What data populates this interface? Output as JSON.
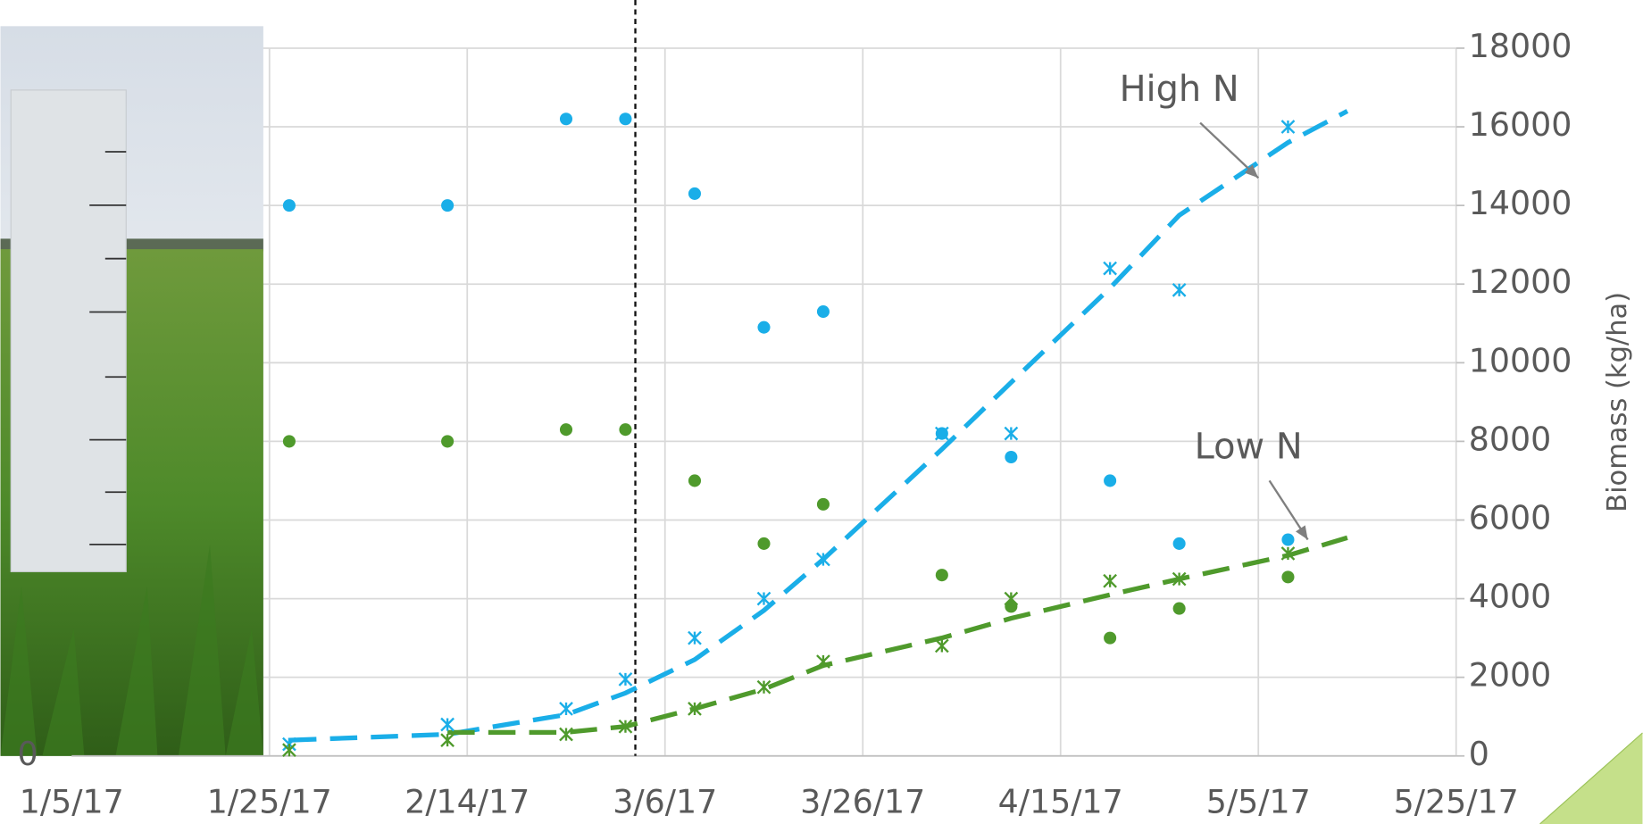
{
  "chart_data": {
    "type": "scatter",
    "y_label": "Biomass (kg/ha)",
    "xlim": [
      "2017-01-05",
      "2017-05-25"
    ],
    "xticks": [
      {
        "value": "2017-01-05",
        "label": "1/5/17"
      },
      {
        "value": "2017-01-25",
        "label": "1/25/17"
      },
      {
        "value": "2017-02-14",
        "label": "2/14/17"
      },
      {
        "value": "2017-03-06",
        "label": "3/6/17"
      },
      {
        "value": "2017-03-26",
        "label": "3/26/17"
      },
      {
        "value": "2017-04-15",
        "label": "4/15/17"
      },
      {
        "value": "2017-05-05",
        "label": "5/5/17"
      },
      {
        "value": "2017-05-25",
        "label": "5/25/17"
      }
    ],
    "ylim": [
      0,
      18000
    ],
    "yticks": [
      0,
      2000,
      4000,
      6000,
      8000,
      10000,
      12000,
      14000,
      16000,
      18000
    ],
    "y2lim": [
      0,
      18000
    ],
    "y2ticks": [
      0
    ],
    "grid": true,
    "vline_x": "2017-03-03",
    "annotations": [
      {
        "text": "High N",
        "x": "2017-04-27",
        "y": 16900,
        "arrow_x": "2017-05-05",
        "arrow_y": 14700
      },
      {
        "text": "Low N",
        "x": "2017-05-04",
        "y": 7800,
        "arrow_x": "2017-05-10",
        "arrow_y": 5500
      }
    ],
    "series": [
      {
        "name": "High N",
        "marker": "circle",
        "color": "#1aaee8",
        "x": [
          "2017-01-27",
          "2017-02-12",
          "2017-02-24",
          "2017-03-02",
          "2017-03-09",
          "2017-03-16",
          "2017-03-22",
          "2017-04-03",
          "2017-04-10",
          "2017-04-20",
          "2017-04-27",
          "2017-05-08"
        ],
        "values": [
          14000,
          14000,
          16200,
          16200,
          14300,
          10900,
          11300,
          8200,
          7600,
          7000,
          5400,
          5500
        ]
      },
      {
        "name": "Low N",
        "marker": "circle",
        "color": "#4f9a2c",
        "x": [
          "2017-01-27",
          "2017-02-12",
          "2017-02-24",
          "2017-03-02",
          "2017-03-09",
          "2017-03-16",
          "2017-03-22",
          "2017-04-03",
          "2017-04-10",
          "2017-04-20",
          "2017-04-27",
          "2017-05-08"
        ],
        "values": [
          8000,
          8000,
          8300,
          8300,
          7000,
          5400,
          6400,
          4600,
          3800,
          3000,
          3750,
          4550
        ]
      },
      {
        "name": "High N",
        "marker": "asterisk",
        "color": "#1aaee8",
        "x": [
          "2017-01-27",
          "2017-02-12",
          "2017-02-24",
          "2017-03-02",
          "2017-03-09",
          "2017-03-16",
          "2017-03-22",
          "2017-04-03",
          "2017-04-10",
          "2017-04-20",
          "2017-04-27",
          "2017-05-08"
        ],
        "values": [
          300,
          800,
          1200,
          1950,
          3000,
          4000,
          5000,
          8200,
          8200,
          12400,
          11850,
          16000
        ]
      },
      {
        "name": "Low N",
        "marker": "asterisk",
        "color": "#4f9a2c",
        "x": [
          "2017-01-27",
          "2017-02-12",
          "2017-02-24",
          "2017-03-02",
          "2017-03-09",
          "2017-03-16",
          "2017-03-22",
          "2017-04-03",
          "2017-04-10",
          "2017-04-20",
          "2017-04-27",
          "2017-05-08"
        ],
        "values": [
          150,
          400,
          550,
          750,
          1200,
          1750,
          2400,
          2800,
          4000,
          4450,
          4500,
          5150
        ]
      },
      {
        "name": "High N",
        "marker": "dashed-line",
        "color": "#1aaee8",
        "x": [
          "2017-01-27",
          "2017-02-12",
          "2017-02-24",
          "2017-03-02",
          "2017-03-09",
          "2017-03-16",
          "2017-03-22",
          "2017-04-03",
          "2017-04-10",
          "2017-04-20",
          "2017-04-27",
          "2017-05-08",
          "2017-05-14"
        ],
        "values": [
          400,
          550,
          1050,
          1600,
          2450,
          3700,
          5000,
          7800,
          9500,
          11900,
          13750,
          15600,
          16400
        ]
      },
      {
        "name": "Low N",
        "marker": "dashed-line",
        "color": "#4f9a2c",
        "x": [
          "2017-02-12",
          "2017-02-24",
          "2017-03-02",
          "2017-03-09",
          "2017-03-16",
          "2017-03-22",
          "2017-04-03",
          "2017-04-10",
          "2017-04-20",
          "2017-04-27",
          "2017-05-08",
          "2017-05-14"
        ],
        "values": [
          600,
          600,
          750,
          1200,
          1700,
          2300,
          3000,
          3500,
          4100,
          4500,
          5100,
          5550
        ]
      }
    ]
  }
}
